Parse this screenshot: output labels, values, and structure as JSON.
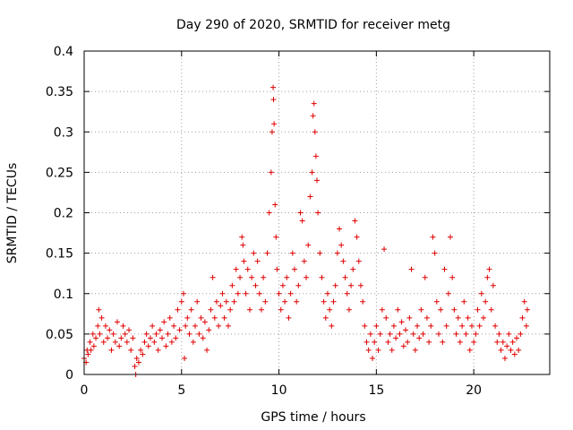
{
  "chart_data": {
    "type": "scatter",
    "title": "Day 290 of 2020, SRMTID for receiver metg",
    "xlabel": "GPS time / hours",
    "ylabel": "SRMTID / TECUs",
    "xlim": [
      0,
      23.9
    ],
    "ylim": [
      0,
      0.4
    ],
    "grid": true,
    "marker": "+",
    "color": "#e00000",
    "xticks": [
      0,
      5,
      10,
      15,
      20
    ],
    "xtick_labels": [
      "0",
      "5",
      "10",
      "15",
      "20"
    ],
    "yticks": [
      0,
      0.05,
      0.1,
      0.15,
      0.2,
      0.25,
      0.3,
      0.35,
      0.4
    ],
    "ytick_labels": [
      "0",
      "0.05",
      "0.1",
      "0.15",
      "0.2",
      "0.25",
      "0.3",
      "0.35",
      "0.4"
    ],
    "series": [
      {
        "name": "metg",
        "points": [
          [
            0.0,
            0.02
          ],
          [
            0.1,
            0.015
          ],
          [
            0.15,
            0.03
          ],
          [
            0.2,
            0.025
          ],
          [
            0.3,
            0.04
          ],
          [
            0.35,
            0.03
          ],
          [
            0.45,
            0.05
          ],
          [
            0.5,
            0.035
          ],
          [
            0.6,
            0.045
          ],
          [
            0.7,
            0.06
          ],
          [
            0.75,
            0.08
          ],
          [
            0.8,
            0.05
          ],
          [
            0.9,
            0.07
          ],
          [
            1.0,
            0.04
          ],
          [
            1.1,
            0.06
          ],
          [
            1.2,
            0.045
          ],
          [
            1.3,
            0.055
          ],
          [
            1.4,
            0.03
          ],
          [
            1.5,
            0.05
          ],
          [
            1.6,
            0.04
          ],
          [
            1.7,
            0.065
          ],
          [
            1.8,
            0.035
          ],
          [
            1.9,
            0.045
          ],
          [
            2.0,
            0.06
          ],
          [
            2.1,
            0.05
          ],
          [
            2.2,
            0.04
          ],
          [
            2.3,
            0.055
          ],
          [
            2.4,
            0.03
          ],
          [
            2.5,
            0.045
          ],
          [
            2.6,
            0.01
          ],
          [
            2.65,
            0.0
          ],
          [
            2.7,
            0.02
          ],
          [
            2.8,
            0.015
          ],
          [
            2.9,
            0.03
          ],
          [
            3.0,
            0.025
          ],
          [
            3.1,
            0.04
          ],
          [
            3.2,
            0.05
          ],
          [
            3.3,
            0.035
          ],
          [
            3.4,
            0.045
          ],
          [
            3.5,
            0.06
          ],
          [
            3.6,
            0.04
          ],
          [
            3.7,
            0.05
          ],
          [
            3.8,
            0.03
          ],
          [
            3.9,
            0.055
          ],
          [
            4.0,
            0.045
          ],
          [
            4.1,
            0.065
          ],
          [
            4.2,
            0.035
          ],
          [
            4.3,
            0.05
          ],
          [
            4.4,
            0.07
          ],
          [
            4.5,
            0.04
          ],
          [
            4.6,
            0.06
          ],
          [
            4.7,
            0.045
          ],
          [
            4.8,
            0.08
          ],
          [
            4.9,
            0.055
          ],
          [
            5.0,
            0.09
          ],
          [
            5.1,
            0.1
          ],
          [
            5.15,
            0.02
          ],
          [
            5.2,
            0.06
          ],
          [
            5.3,
            0.07
          ],
          [
            5.4,
            0.05
          ],
          [
            5.5,
            0.08
          ],
          [
            5.6,
            0.04
          ],
          [
            5.7,
            0.06
          ],
          [
            5.8,
            0.09
          ],
          [
            5.9,
            0.05
          ],
          [
            6.0,
            0.07
          ],
          [
            6.1,
            0.045
          ],
          [
            6.2,
            0.065
          ],
          [
            6.3,
            0.03
          ],
          [
            6.4,
            0.055
          ],
          [
            6.5,
            0.08
          ],
          [
            6.6,
            0.12
          ],
          [
            6.7,
            0.07
          ],
          [
            6.8,
            0.09
          ],
          [
            6.9,
            0.06
          ],
          [
            7.0,
            0.085
          ],
          [
            7.1,
            0.1
          ],
          [
            7.2,
            0.07
          ],
          [
            7.3,
            0.09
          ],
          [
            7.4,
            0.06
          ],
          [
            7.5,
            0.08
          ],
          [
            7.6,
            0.11
          ],
          [
            7.7,
            0.09
          ],
          [
            7.8,
            0.13
          ],
          [
            7.9,
            0.1
          ],
          [
            8.0,
            0.12
          ],
          [
            8.1,
            0.17
          ],
          [
            8.15,
            0.16
          ],
          [
            8.2,
            0.14
          ],
          [
            8.3,
            0.1
          ],
          [
            8.4,
            0.13
          ],
          [
            8.5,
            0.08
          ],
          [
            8.6,
            0.12
          ],
          [
            8.7,
            0.15
          ],
          [
            8.8,
            0.11
          ],
          [
            8.9,
            0.14
          ],
          [
            9.0,
            0.1
          ],
          [
            9.1,
            0.08
          ],
          [
            9.2,
            0.12
          ],
          [
            9.3,
            0.09
          ],
          [
            9.4,
            0.15
          ],
          [
            9.5,
            0.2
          ],
          [
            9.6,
            0.25
          ],
          [
            9.65,
            0.3
          ],
          [
            9.7,
            0.355
          ],
          [
            9.72,
            0.34
          ],
          [
            9.75,
            0.31
          ],
          [
            9.8,
            0.21
          ],
          [
            9.85,
            0.17
          ],
          [
            9.9,
            0.13
          ],
          [
            10.0,
            0.1
          ],
          [
            10.1,
            0.08
          ],
          [
            10.2,
            0.11
          ],
          [
            10.3,
            0.09
          ],
          [
            10.4,
            0.12
          ],
          [
            10.5,
            0.07
          ],
          [
            10.6,
            0.1
          ],
          [
            10.7,
            0.15
          ],
          [
            10.8,
            0.13
          ],
          [
            10.9,
            0.09
          ],
          [
            11.0,
            0.11
          ],
          [
            11.1,
            0.2
          ],
          [
            11.2,
            0.19
          ],
          [
            11.3,
            0.14
          ],
          [
            11.4,
            0.12
          ],
          [
            11.5,
            0.16
          ],
          [
            11.6,
            0.22
          ],
          [
            11.7,
            0.25
          ],
          [
            11.75,
            0.32
          ],
          [
            11.8,
            0.335
          ],
          [
            11.85,
            0.3
          ],
          [
            11.9,
            0.27
          ],
          [
            11.95,
            0.24
          ],
          [
            12.0,
            0.2
          ],
          [
            12.1,
            0.15
          ],
          [
            12.2,
            0.12
          ],
          [
            12.3,
            0.09
          ],
          [
            12.4,
            0.07
          ],
          [
            12.5,
            0.1
          ],
          [
            12.6,
            0.08
          ],
          [
            12.7,
            0.06
          ],
          [
            12.8,
            0.09
          ],
          [
            12.9,
            0.11
          ],
          [
            13.0,
            0.15
          ],
          [
            13.1,
            0.18
          ],
          [
            13.2,
            0.16
          ],
          [
            13.3,
            0.14
          ],
          [
            13.4,
            0.12
          ],
          [
            13.5,
            0.1
          ],
          [
            13.6,
            0.08
          ],
          [
            13.7,
            0.11
          ],
          [
            13.8,
            0.13
          ],
          [
            13.9,
            0.19
          ],
          [
            14.0,
            0.17
          ],
          [
            14.1,
            0.14
          ],
          [
            14.2,
            0.11
          ],
          [
            14.3,
            0.09
          ],
          [
            14.4,
            0.06
          ],
          [
            14.5,
            0.04
          ],
          [
            14.6,
            0.03
          ],
          [
            14.7,
            0.05
          ],
          [
            14.8,
            0.02
          ],
          [
            14.9,
            0.04
          ],
          [
            15.0,
            0.06
          ],
          [
            15.1,
            0.03
          ],
          [
            15.2,
            0.05
          ],
          [
            15.3,
            0.08
          ],
          [
            15.4,
            0.155
          ],
          [
            15.5,
            0.07
          ],
          [
            15.6,
            0.04
          ],
          [
            15.7,
            0.05
          ],
          [
            15.8,
            0.03
          ],
          [
            15.9,
            0.06
          ],
          [
            16.0,
            0.045
          ],
          [
            16.1,
            0.08
          ],
          [
            16.2,
            0.05
          ],
          [
            16.3,
            0.065
          ],
          [
            16.4,
            0.035
          ],
          [
            16.5,
            0.055
          ],
          [
            16.6,
            0.04
          ],
          [
            16.7,
            0.07
          ],
          [
            16.8,
            0.13
          ],
          [
            16.9,
            0.05
          ],
          [
            17.0,
            0.03
          ],
          [
            17.1,
            0.06
          ],
          [
            17.2,
            0.045
          ],
          [
            17.3,
            0.08
          ],
          [
            17.4,
            0.05
          ],
          [
            17.5,
            0.12
          ],
          [
            17.6,
            0.07
          ],
          [
            17.7,
            0.04
          ],
          [
            17.8,
            0.06
          ],
          [
            17.9,
            0.17
          ],
          [
            18.0,
            0.15
          ],
          [
            18.1,
            0.09
          ],
          [
            18.2,
            0.05
          ],
          [
            18.3,
            0.08
          ],
          [
            18.4,
            0.04
          ],
          [
            18.5,
            0.13
          ],
          [
            18.6,
            0.06
          ],
          [
            18.7,
            0.1
          ],
          [
            18.8,
            0.17
          ],
          [
            18.9,
            0.12
          ],
          [
            19.0,
            0.08
          ],
          [
            19.1,
            0.05
          ],
          [
            19.2,
            0.07
          ],
          [
            19.3,
            0.04
          ],
          [
            19.4,
            0.06
          ],
          [
            19.5,
            0.09
          ],
          [
            19.6,
            0.05
          ],
          [
            19.7,
            0.07
          ],
          [
            19.8,
            0.03
          ],
          [
            19.9,
            0.06
          ],
          [
            20.0,
            0.04
          ],
          [
            20.1,
            0.05
          ],
          [
            20.2,
            0.08
          ],
          [
            20.3,
            0.06
          ],
          [
            20.4,
            0.1
          ],
          [
            20.5,
            0.07
          ],
          [
            20.6,
            0.09
          ],
          [
            20.7,
            0.12
          ],
          [
            20.8,
            0.13
          ],
          [
            20.9,
            0.08
          ],
          [
            21.0,
            0.11
          ],
          [
            21.1,
            0.06
          ],
          [
            21.2,
            0.04
          ],
          [
            21.3,
            0.05
          ],
          [
            21.4,
            0.03
          ],
          [
            21.5,
            0.04
          ],
          [
            21.6,
            0.02
          ],
          [
            21.7,
            0.035
          ],
          [
            21.8,
            0.05
          ],
          [
            21.9,
            0.03
          ],
          [
            22.0,
            0.04
          ],
          [
            22.1,
            0.025
          ],
          [
            22.2,
            0.045
          ],
          [
            22.3,
            0.03
          ],
          [
            22.4,
            0.05
          ],
          [
            22.5,
            0.07
          ],
          [
            22.6,
            0.09
          ],
          [
            22.7,
            0.06
          ],
          [
            22.75,
            0.08
          ]
        ]
      }
    ]
  }
}
